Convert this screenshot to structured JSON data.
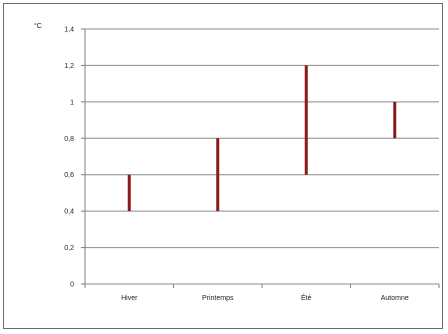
{
  "chart_data": {
    "type": "bar",
    "subtype": "floating-range",
    "unit_label": "°C",
    "categories": [
      "Hiver",
      "Printemps",
      "Été",
      "Automne"
    ],
    "ranges": [
      {
        "category": "Hiver",
        "low": 0.4,
        "high": 0.6
      },
      {
        "category": "Printemps",
        "low": 0.4,
        "high": 0.8
      },
      {
        "category": "Été",
        "low": 0.6,
        "high": 1.2
      },
      {
        "category": "Automne",
        "low": 0.8,
        "high": 1.0
      }
    ],
    "ylim": [
      0,
      1.4
    ],
    "yticks": [
      0,
      0.2,
      0.4,
      0.6,
      0.8,
      1,
      1.2,
      1.4
    ],
    "ytick_labels": [
      "0",
      "0,2",
      "0,4",
      "0,6",
      "0,8",
      "1",
      "1,2",
      "1,4"
    ],
    "grid": true,
    "legend": "none",
    "colors": {
      "bar": "#8b1a1a",
      "grid": "#8c8c8c",
      "axis": "#7f7f7f"
    }
  }
}
